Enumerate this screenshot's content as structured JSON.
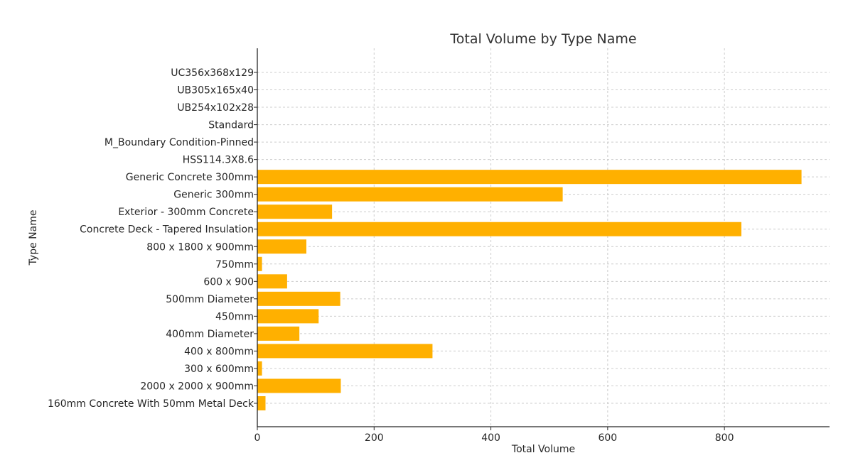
{
  "chart_data": {
    "type": "bar",
    "orientation": "horizontal",
    "title": "Total Volume by Type Name",
    "xlabel": "Total Volume",
    "ylabel": "Type Name",
    "xlim": [
      0,
      980
    ],
    "xticks": [
      0,
      200,
      400,
      600,
      800
    ],
    "grid": true,
    "bar_color": "#FFB000",
    "categories": [
      "160mm Concrete With 50mm Metal Deck",
      "2000 x 2000 x 900mm",
      "300 x 600mm",
      "400 x 800mm",
      "400mm Diameter",
      "450mm",
      "500mm Diameter",
      "600 x 900",
      "750mm",
      "800 x 1800 x 900mm",
      "Concrete Deck - Tapered Insulation",
      "Exterior - 300mm Concrete",
      "Generic 300mm",
      "Generic Concrete 300mm",
      "HSS114.3X8.6",
      "M_Boundary Condition-Pinned",
      "Standard",
      "UB254x102x28",
      "UB305x165x40",
      "UC356x368x129"
    ],
    "values": [
      14,
      143,
      8,
      300,
      72,
      105,
      142,
      51,
      8,
      84,
      829,
      128,
      523,
      932,
      0,
      0,
      0,
      0,
      0,
      0
    ]
  }
}
